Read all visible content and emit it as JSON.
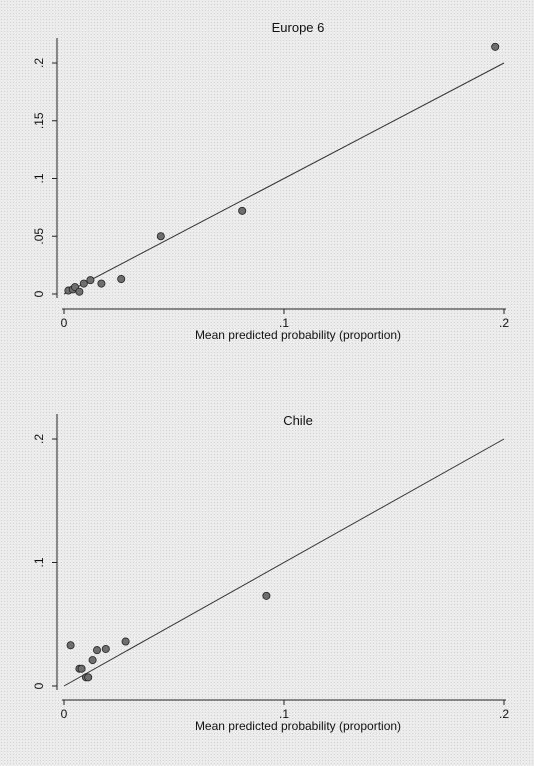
{
  "chart_data": [
    {
      "type": "scatter",
      "title": "Europe 6",
      "xlabel": "Mean predicted probability (proportion)",
      "ylabel": "",
      "xlim": [
        0,
        0.2
      ],
      "ylim": [
        0,
        0.2
      ],
      "xticks": [
        0,
        0.1,
        0.2
      ],
      "xtick_labels": [
        "0",
        ".1",
        ".2"
      ],
      "yticks": [
        0,
        0.05,
        0.1,
        0.15,
        0.2
      ],
      "ytick_labels": [
        "0",
        ".05",
        ".1",
        ".15",
        ".2"
      ],
      "grid": false,
      "reference_line": {
        "from": [
          0,
          0
        ],
        "to": [
          0.2,
          0.2
        ]
      },
      "points": {
        "x": [
          0.002,
          0.004,
          0.005,
          0.007,
          0.009,
          0.012,
          0.017,
          0.026,
          0.044,
          0.081,
          0.196
        ],
        "y": [
          0.003,
          0.004,
          0.006,
          0.002,
          0.009,
          0.012,
          0.009,
          0.013,
          0.05,
          0.072,
          0.214
        ]
      }
    },
    {
      "type": "scatter",
      "title": "Chile",
      "xlabel": "Mean predicted probability (proportion)",
      "ylabel": "",
      "xlim": [
        0,
        0.2
      ],
      "ylim": [
        0,
        0.2
      ],
      "xticks": [
        0,
        0.1,
        0.2
      ],
      "xtick_labels": [
        "0",
        ".1",
        ".2"
      ],
      "yticks": [
        0,
        0.1,
        0.2
      ],
      "ytick_labels": [
        "0",
        ".1",
        ".2"
      ],
      "grid": false,
      "reference_line": {
        "from": [
          0,
          0
        ],
        "to": [
          0.2,
          0.2
        ]
      },
      "points": {
        "x": [
          0.003,
          0.007,
          0.008,
          0.01,
          0.011,
          0.013,
          0.015,
          0.019,
          0.028,
          0.092
        ],
        "y": [
          0.033,
          0.014,
          0.014,
          0.007,
          0.007,
          0.021,
          0.029,
          0.03,
          0.036,
          0.073
        ]
      }
    }
  ]
}
